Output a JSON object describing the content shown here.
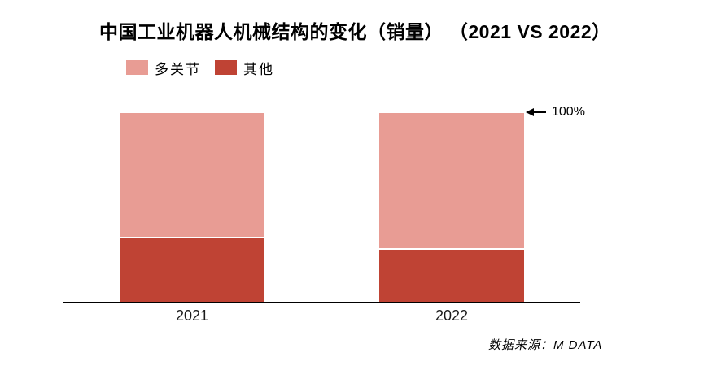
{
  "title": "中国工业机器人机械结构的变化（销量） （2021 VS 2022）",
  "legend": {
    "items": [
      {
        "label": "多关节",
        "color": "#E89C94"
      },
      {
        "label": "其他",
        "color": "#BF4334"
      }
    ]
  },
  "annotation": {
    "label": "100%"
  },
  "source": "数据来源：M DATA",
  "chart_data": {
    "type": "bar",
    "stacked": true,
    "title": "中国工业机器人机械结构的变化（销量）（2021 VS 2022）",
    "categories": [
      "2021",
      "2022"
    ],
    "series": [
      {
        "name": "多关节",
        "color": "#E89C94",
        "values": [
          66,
          72
        ]
      },
      {
        "name": "其他",
        "color": "#BF4334",
        "values": [
          34,
          28
        ]
      }
    ],
    "unit": "%",
    "ylim": [
      0,
      100
    ],
    "grid": false,
    "y_axis_visible": false,
    "legend_position": "top-left",
    "annotations": [
      {
        "text": "100%",
        "target": "top of 2022 bar",
        "arrow": "left"
      }
    ],
    "source": "数据来源：M DATA"
  }
}
